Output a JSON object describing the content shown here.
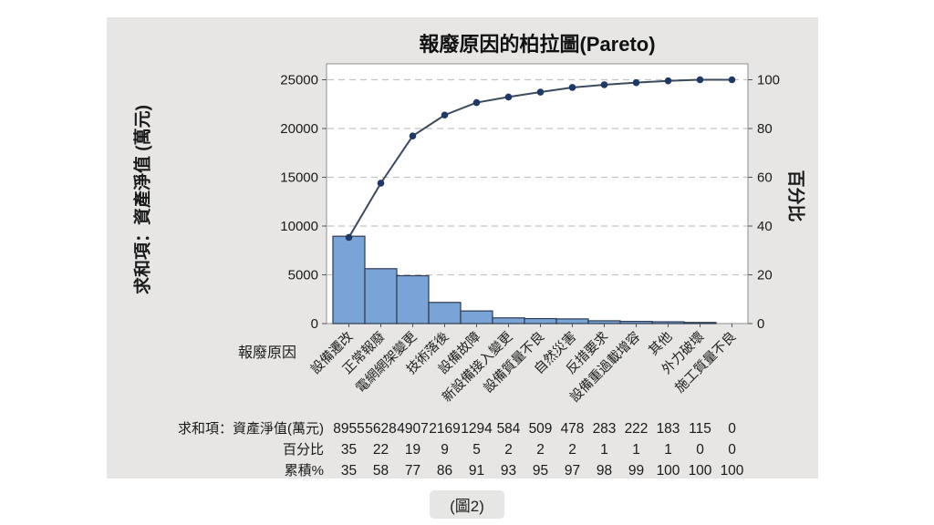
{
  "page": {
    "background": "#ffffff",
    "caption": "(圖2)"
  },
  "style": {
    "panel_bg": "#e7e6e4",
    "plot_bg": "#ffffff",
    "plot_border": "#8f8f8f",
    "grid": "#c3c3c3",
    "bar_fill": "#7aa3d6",
    "bar_stroke": "#2d3a52",
    "line": "#3d4a5d",
    "marker": "#1f3864",
    "tick": "#555555",
    "text": "#1a1a1a"
  },
  "chart_data": {
    "type": "pareto (bar + cumulative line)",
    "title": "報廢原因的柏拉圖(Pareto)",
    "x_label": "報廢原因",
    "categories": [
      "設備遷改",
      "正常報廢",
      "電網網架變更",
      "技術落後",
      "設備故障",
      "新設備接入變更",
      "設備質量不良",
      "自然災害",
      "反措要求",
      "設備重過載增容",
      "其他",
      "外力破壞",
      "施工質量不良"
    ],
    "series": [
      {
        "name": "求和項：資產淨值(萬元)",
        "type": "bar",
        "values": [
          8955,
          5628,
          4907,
          2169,
          1294,
          584,
          509,
          478,
          283,
          222,
          183,
          115,
          0
        ]
      },
      {
        "name": "百分比",
        "type": "table-row",
        "values": [
          35,
          22,
          19,
          9,
          5,
          2,
          2,
          2,
          1,
          1,
          1,
          0,
          0
        ]
      },
      {
        "name": "累積%",
        "type": "line",
        "values": [
          35,
          58,
          77,
          86,
          91,
          93,
          95,
          97,
          98,
          99,
          100,
          100,
          100
        ]
      }
    ],
    "left_axis": {
      "label": "求和項：資產淨值 (萬元)",
      "ticks": [
        0,
        5000,
        10000,
        15000,
        20000,
        25000
      ],
      "range": [
        0,
        25000
      ]
    },
    "right_axis": {
      "label": "百分比",
      "ticks": [
        0,
        20,
        40,
        60,
        80,
        100
      ],
      "range": [
        0,
        100
      ]
    },
    "grid": "horizontal dashed at right-axis ticks",
    "legend": "none"
  }
}
